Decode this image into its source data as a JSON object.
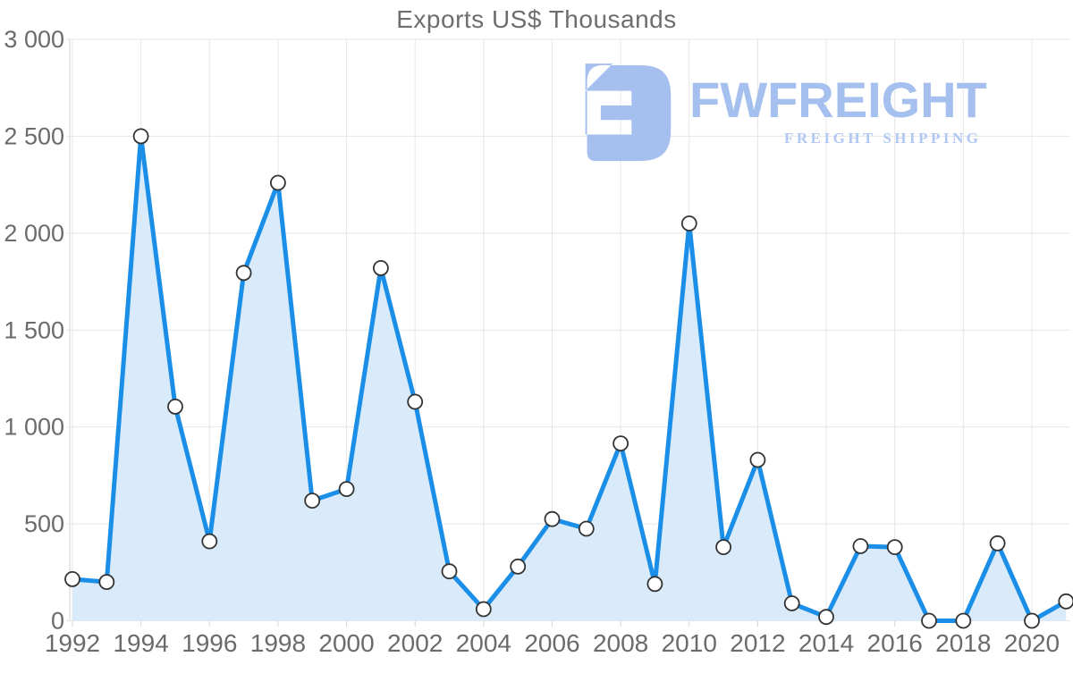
{
  "chart_data": {
    "type": "area",
    "title": "Exports US$ Thousands",
    "xlabel": "",
    "ylabel": "",
    "x": [
      1992,
      1993,
      1994,
      1995,
      1996,
      1997,
      1998,
      1999,
      2000,
      2001,
      2002,
      2003,
      2004,
      2005,
      2006,
      2007,
      2008,
      2009,
      2010,
      2011,
      2012,
      2013,
      2014,
      2015,
      2016,
      2017,
      2018,
      2019,
      2020,
      2021
    ],
    "values": [
      215,
      200,
      2500,
      1105,
      410,
      1795,
      2260,
      620,
      680,
      1820,
      1130,
      255,
      60,
      280,
      525,
      475,
      915,
      190,
      2050,
      380,
      830,
      90,
      20,
      385,
      380,
      0,
      0,
      400,
      0,
      100
    ],
    "ylim": [
      0,
      3000
    ],
    "y_tick_values": [
      0,
      500,
      1000,
      1500,
      2000,
      2500,
      3000
    ],
    "y_tick_labels": [
      "0",
      "500",
      "1 000",
      "1 500",
      "2 000",
      "2 500",
      "3 000"
    ],
    "x_tick_years": [
      1992,
      1994,
      1996,
      1998,
      2000,
      2002,
      2004,
      2006,
      2008,
      2010,
      2012,
      2014,
      2016,
      2018,
      2020
    ],
    "x_tick_labels": [
      "1992",
      "1994",
      "1996",
      "1998",
      "2000",
      "2002",
      "2004",
      "2006",
      "2008",
      "2010",
      "2012",
      "2014",
      "2016",
      "2018",
      "2020"
    ],
    "grid": true,
    "legend": false,
    "marker": "circle"
  },
  "colors": {
    "line": "#1b8fe8",
    "area_fill": "#d9ebfb",
    "grid": "#e6e6e6",
    "axis": "#d6d6d6",
    "tick_label": "#6b6b6b",
    "title": "#6e6e6e",
    "marker_fill": "#ffffff",
    "marker_stroke": "#333333",
    "brand_blue": "#a5c0ee",
    "brand_tagline_blue": "#b1c8f2"
  },
  "brand": {
    "name": "FWFREIGHT",
    "tagline": "FREIGHT SHIPPING"
  }
}
